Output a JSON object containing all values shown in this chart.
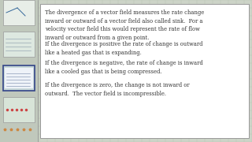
{
  "background_color": "#cdd4c8",
  "grid_color": "#b8c4b4",
  "left_strip_color": "#c0c8bc",
  "box_bg": "#ffffff",
  "box_edge": "#999999",
  "paragraphs": [
    "The divergence of a vector field measures the rate change\ninward or outward of a vector field also called sink.  For a\nvelocity vector field this would represent the rate of flow\ninward or outward from a given point.",
    "If the divergence is positive the rate of change is outward\nlike a heated gas that is expanding.",
    "If the divergence is negative, the rate of change is inward\nlike a cooled gas that is being compressed.",
    "If the divergence is zero, the change is not inward or\noutward.  The vector field is incompressible."
  ],
  "text_color": "#333333",
  "font_size": 4.9,
  "thumb_colors": [
    "#e8eee8",
    "#dde8e0",
    "#c8d8d8",
    "#d8e4d8"
  ],
  "thumb_border_colors": [
    "#999999",
    "#999999",
    "#334488",
    "#999999"
  ],
  "thumb_selected": 2
}
